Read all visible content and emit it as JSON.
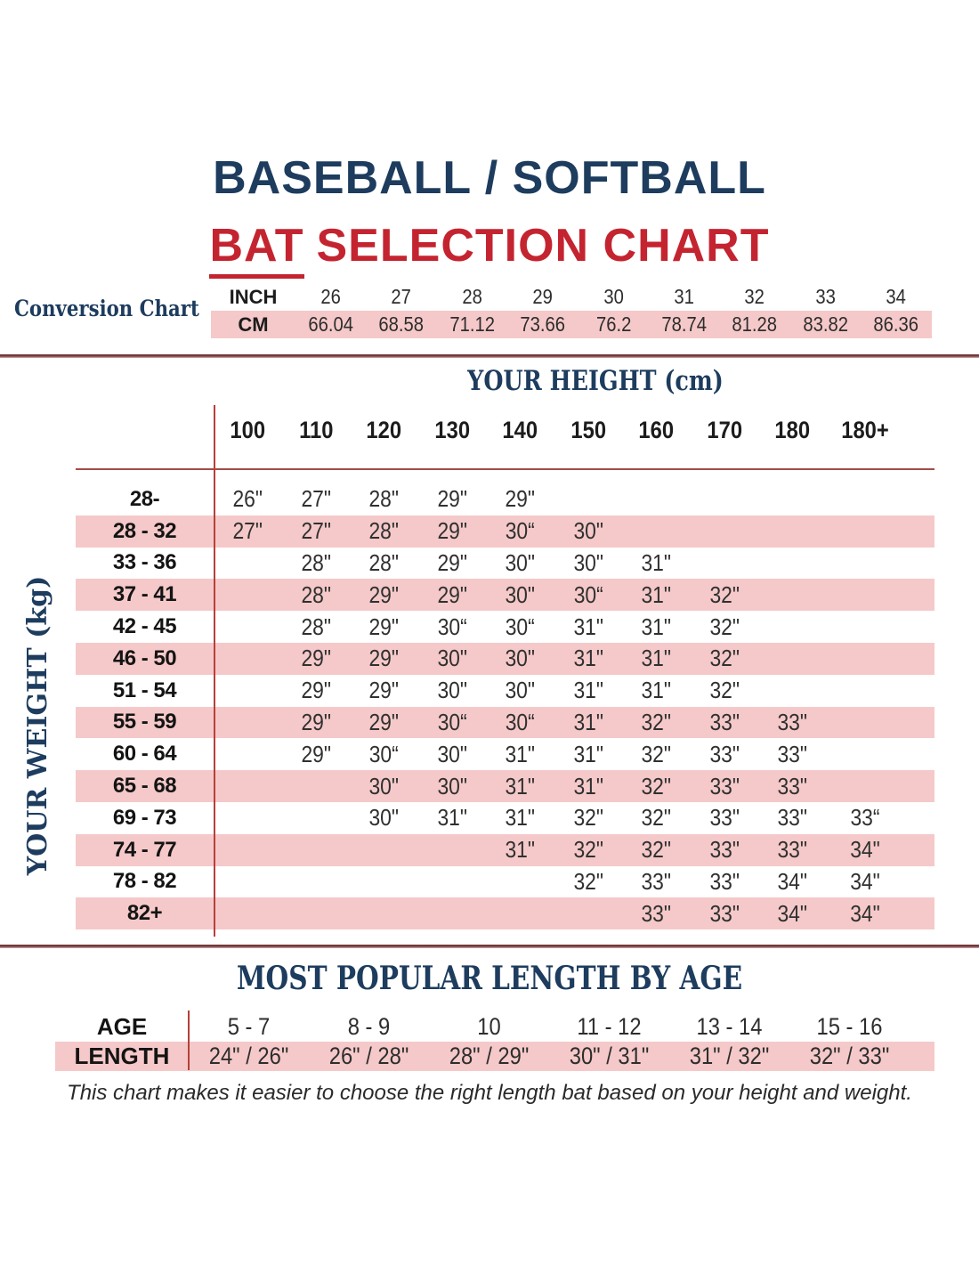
{
  "header": {
    "title_line1": "BASEBALL / SOFTBALL",
    "subtitle_emphasis": "BAT",
    "subtitle_rest": "SELECTION CHART"
  },
  "footer": {
    "note": "This chart makes it easier to choose the right length bat based on your height and weight."
  },
  "colors": {
    "navy": "#1d3c5e",
    "red": "#c42430",
    "pink": "#f5c9c9",
    "rule_red": "#b5403a",
    "rule_maroon": "#a34c46"
  },
  "chart_data": [
    {
      "type": "table",
      "title": "Conversion Chart",
      "rows": [
        {
          "label": "INCH",
          "values": [
            "26",
            "27",
            "28",
            "29",
            "30",
            "31",
            "32",
            "33",
            "34"
          ]
        },
        {
          "label": "CM",
          "values": [
            "66.04",
            "68.58",
            "71.12",
            "73.66",
            "76.2",
            "78.74",
            "81.28",
            "83.82",
            "86.36"
          ]
        }
      ]
    },
    {
      "type": "table",
      "x_label": "YOUR HEIGHT (cm)",
      "y_label": "YOUR WEIGHT (kg)",
      "columns": [
        "100",
        "110",
        "120",
        "130",
        "140",
        "150",
        "160",
        "170",
        "180",
        "180+"
      ],
      "rows": [
        {
          "label": "28-",
          "values": [
            "26\"",
            "27\"",
            "28\"",
            "29\"",
            "29\"",
            "",
            "",
            "",
            "",
            ""
          ]
        },
        {
          "label": "28 - 32",
          "values": [
            "27\"",
            "27\"",
            "28\"",
            "29\"",
            "30“",
            "30\"",
            "",
            "",
            "",
            ""
          ]
        },
        {
          "label": "33 - 36",
          "values": [
            "",
            "28\"",
            "28\"",
            "29\"",
            "30\"",
            "30\"",
            "31\"",
            "",
            "",
            ""
          ]
        },
        {
          "label": "37 - 41",
          "values": [
            "",
            "28\"",
            "29\"",
            "29\"",
            "30\"",
            "30“",
            "31\"",
            "32\"",
            "",
            ""
          ]
        },
        {
          "label": "42 - 45",
          "values": [
            "",
            "28\"",
            "29\"",
            "30“",
            "30“",
            "31\"",
            "31\"",
            "32\"",
            "",
            ""
          ]
        },
        {
          "label": "46 - 50",
          "values": [
            "",
            "29\"",
            "29\"",
            "30\"",
            "30\"",
            "31\"",
            "31\"",
            "32\"",
            "",
            ""
          ]
        },
        {
          "label": "51 - 54",
          "values": [
            "",
            "29\"",
            "29\"",
            "30\"",
            "30\"",
            "31\"",
            "31\"",
            "32\"",
            "",
            ""
          ]
        },
        {
          "label": "55 - 59",
          "values": [
            "",
            "29\"",
            "29\"",
            "30“",
            "30“",
            "31\"",
            "32\"",
            "33\"",
            "33\"",
            ""
          ]
        },
        {
          "label": "60 - 64",
          "values": [
            "",
            "29\"",
            "30“",
            "30\"",
            "31\"",
            "31\"",
            "32\"",
            "33\"",
            "33\"",
            ""
          ]
        },
        {
          "label": "65 - 68",
          "values": [
            "",
            "",
            "30\"",
            "30\"",
            "31\"",
            "31\"",
            "32\"",
            "33\"",
            "33\"",
            ""
          ]
        },
        {
          "label": "69 - 73",
          "values": [
            "",
            "",
            "30\"",
            "31\"",
            "31\"",
            "32\"",
            "32\"",
            "33\"",
            "33\"",
            "33“"
          ]
        },
        {
          "label": "74 - 77",
          "values": [
            "",
            "",
            "",
            "",
            "31\"",
            "32\"",
            "32\"",
            "33\"",
            "33\"",
            "34\""
          ]
        },
        {
          "label": "78 - 82",
          "values": [
            "",
            "",
            "",
            "",
            "",
            "32\"",
            "33\"",
            "33\"",
            "34\"",
            "34\""
          ]
        },
        {
          "label": "82+",
          "values": [
            "",
            "",
            "",
            "",
            "",
            "",
            "33\"",
            "33\"",
            "34\"",
            "34\""
          ]
        }
      ]
    },
    {
      "type": "table",
      "title": "MOST POPULAR LENGTH BY AGE",
      "rows": [
        {
          "label": "AGE",
          "values": [
            "5 - 7",
            "8 - 9",
            "10",
            "11 - 12",
            "13 - 14",
            "15 - 16"
          ]
        },
        {
          "label": "LENGTH",
          "values": [
            "24\" / 26\"",
            "26\" / 28\"",
            "28\" / 29\"",
            "30\" / 31\"",
            "31\" / 32\"",
            "32\" / 33\""
          ]
        }
      ]
    }
  ]
}
